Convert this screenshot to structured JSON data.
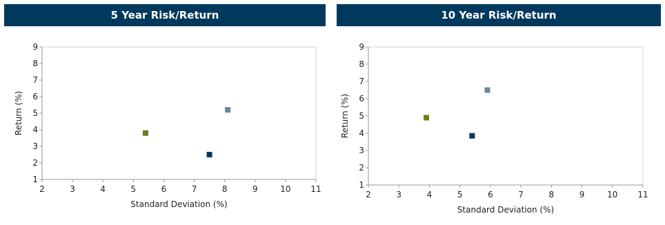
{
  "chart_data": [
    {
      "type": "scatter",
      "title": "5 Year Risk/Return",
      "xlabel": "Standard Deviation (%)",
      "ylabel": "Return (%)",
      "xlim": [
        2,
        11
      ],
      "ylim": [
        1,
        9
      ],
      "xticks": [
        2,
        3,
        4,
        5,
        6,
        7,
        8,
        9,
        10,
        11
      ],
      "yticks": [
        1,
        2,
        3,
        4,
        5,
        6,
        7,
        8,
        9
      ],
      "grid": false,
      "series": [
        {
          "color": "#6f7d1c",
          "points": [
            {
              "x": 5.4,
              "y": 3.8
            }
          ]
        },
        {
          "color": "#6b8798",
          "points": [
            {
              "x": 8.1,
              "y": 5.2
            }
          ]
        },
        {
          "color": "#003a5d",
          "points": [
            {
              "x": 7.5,
              "y": 2.5
            }
          ]
        }
      ]
    },
    {
      "type": "scatter",
      "title": "10 Year Risk/Return",
      "xlabel": "Standard Deviation (%)",
      "ylabel": "Return (%)",
      "xlim": [
        2,
        11
      ],
      "ylim": [
        1,
        9
      ],
      "xticks": [
        2,
        3,
        4,
        5,
        6,
        7,
        8,
        9,
        10,
        11
      ],
      "yticks": [
        1,
        2,
        3,
        4,
        5,
        6,
        7,
        8,
        9
      ],
      "grid": false,
      "series": [
        {
          "color": "#6f7d1c",
          "points": [
            {
              "x": 3.9,
              "y": 4.9
            }
          ]
        },
        {
          "color": "#6b8798",
          "points": [
            {
              "x": 5.9,
              "y": 6.5
            }
          ]
        },
        {
          "color": "#003a5d",
          "points": [
            {
              "x": 5.4,
              "y": 3.85
            }
          ]
        }
      ]
    }
  ]
}
